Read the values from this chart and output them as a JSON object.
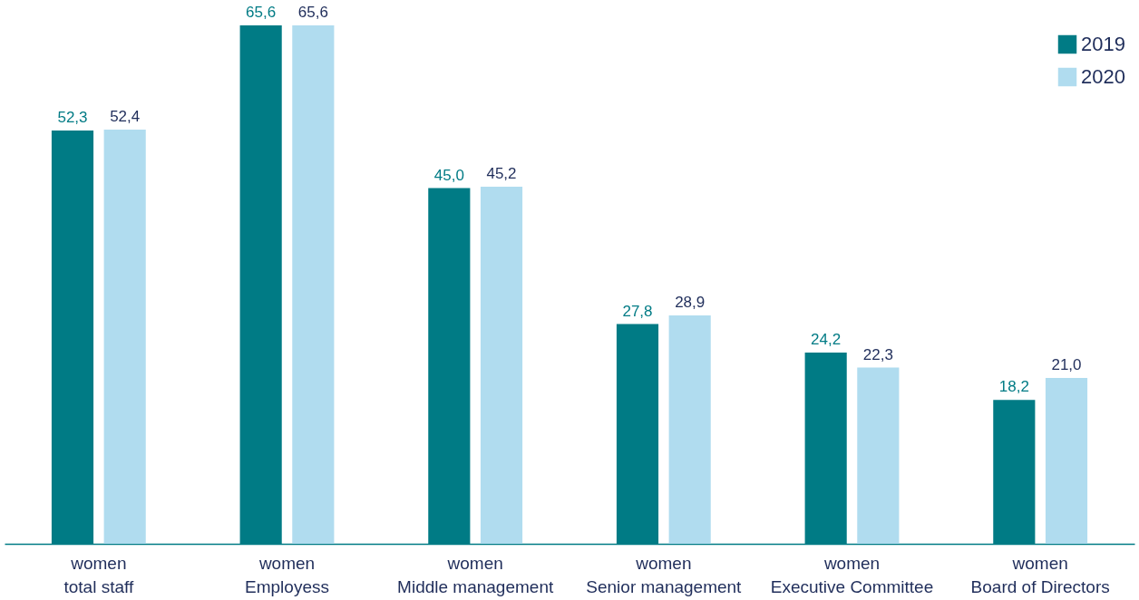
{
  "chart_data": {
    "type": "bar",
    "categories": [
      "women\ntotal staff",
      "women\nEmployess",
      "women\nMiddle management",
      "women\nSenior management",
      "women\nExecutive Committee",
      "women\nBoard of Directors"
    ],
    "series": [
      {
        "name": "2019",
        "color": "#007b85",
        "values": [
          52.3,
          65.6,
          45.0,
          27.8,
          24.2,
          18.2
        ],
        "value_labels": [
          "52,3",
          "65,6",
          "45,0",
          "27,8",
          "24,2",
          "18,2"
        ]
      },
      {
        "name": "2020",
        "color": "#b0dcef",
        "values": [
          52.4,
          65.6,
          45.2,
          28.9,
          22.3,
          21.0
        ],
        "value_labels": [
          "52,4",
          "65,6",
          "45,2",
          "28,9",
          "22,3",
          "21,0"
        ]
      }
    ],
    "grid": false,
    "legend": "top right"
  }
}
